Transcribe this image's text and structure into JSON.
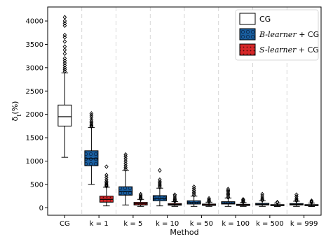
{
  "chart_data": {
    "type": "box",
    "title": "",
    "xlabel": "Method",
    "ylabel_main": "δ",
    "ylabel_sub": "t",
    "ylabel_unit": "(%)",
    "ylim": [
      -160,
      4300
    ],
    "yticks": [
      0,
      500,
      1000,
      1500,
      2000,
      2500,
      3000,
      3500,
      4000
    ],
    "grid": {
      "x": true,
      "y": false,
      "style": "dashed"
    },
    "legend_position": "top-right",
    "groups": [
      {
        "label": "CG",
        "boxes": [
          {
            "series": "CG",
            "q1": 1750,
            "median": 1950,
            "q3": 2200,
            "whisker_low": 1080,
            "whisker_high": 2890,
            "outliers": [
              2920,
              2960,
              3000,
              3050,
              3100,
              3150,
              3200,
              3300,
              3380,
              3450,
              3560,
              3650,
              3700,
              3900,
              3950,
              4000,
              4080
            ]
          }
        ]
      },
      {
        "label": "k = 1",
        "boxes": [
          {
            "series": "B-learner + CG",
            "q1": 900,
            "median": 1050,
            "q3": 1220,
            "whisker_low": 500,
            "whisker_high": 1720,
            "outliers": [
              1740,
              1760,
              1790,
              1820,
              1850,
              1890,
              1940,
              1980,
              2020
            ]
          },
          {
            "series": "S-learner + CG",
            "q1": 120,
            "median": 180,
            "q3": 250,
            "whisker_low": 40,
            "whisker_high": 440,
            "outliers": [
              460,
              480,
              500,
              530,
              560,
              600,
              650,
              700,
              880
            ]
          }
        ]
      },
      {
        "label": "k = 5",
        "boxes": [
          {
            "series": "B-learner + CG",
            "q1": 270,
            "median": 350,
            "q3": 450,
            "whisker_low": 60,
            "whisker_high": 800,
            "outliers": [
              820,
              860,
              900,
              950,
              1000,
              1050,
              1100,
              1140
            ]
          },
          {
            "series": "S-learner + CG",
            "q1": 60,
            "median": 85,
            "q3": 115,
            "whisker_low": 30,
            "whisker_high": 180,
            "outliers": [
              190,
              210,
              230,
              260,
              290
            ]
          }
        ]
      },
      {
        "label": "k = 10",
        "boxes": [
          {
            "series": "B-learner + CG",
            "q1": 150,
            "median": 200,
            "q3": 260,
            "whisker_low": 40,
            "whisker_high": 420,
            "outliers": [
              440,
              470,
              500,
              530,
              560,
              600,
              800
            ]
          },
          {
            "series": "S-learner + CG",
            "q1": 55,
            "median": 70,
            "q3": 90,
            "whisker_low": 30,
            "whisker_high": 130,
            "outliers": [
              140,
              160,
              180,
              210,
              250,
              280
            ]
          }
        ]
      },
      {
        "label": "k = 50",
        "boxes": [
          {
            "series": "B-learner + CG",
            "q1": 80,
            "median": 110,
            "q3": 150,
            "whisker_low": 30,
            "whisker_high": 250,
            "outliers": [
              270,
              300,
              330,
              370,
              410,
              450
            ]
          },
          {
            "series": "S-learner + CG",
            "q1": 50,
            "median": 62,
            "q3": 80,
            "whisker_low": 30,
            "whisker_high": 120,
            "outliers": [
              130,
              150,
              170,
              200
            ]
          }
        ]
      },
      {
        "label": "k = 100",
        "boxes": [
          {
            "series": "B-learner + CG",
            "q1": 80,
            "median": 100,
            "q3": 130,
            "whisker_low": 30,
            "whisker_high": 210,
            "outliers": [
              220,
              250,
              280,
              310,
              340,
              370,
              400
            ]
          },
          {
            "series": "S-learner + CG",
            "q1": 48,
            "median": 60,
            "q3": 75,
            "whisker_low": 30,
            "whisker_high": 110,
            "outliers": [
              120,
              140,
              160,
              180
            ]
          }
        ]
      },
      {
        "label": "k = 500",
        "boxes": [
          {
            "series": "B-learner + CG",
            "q1": 60,
            "median": 75,
            "q3": 95,
            "whisker_low": 30,
            "whisker_high": 150,
            "outliers": [
              160,
              180,
              210,
              250,
              290
            ]
          },
          {
            "series": "S-learner + CG",
            "q1": 45,
            "median": 55,
            "q3": 68,
            "whisker_low": 28,
            "whisker_high": 100,
            "outliers": [
              110,
              120
            ]
          }
        ]
      },
      {
        "label": "k = 999",
        "boxes": [
          {
            "series": "B-learner + CG",
            "q1": 60,
            "median": 72,
            "q3": 90,
            "whisker_low": 30,
            "whisker_high": 140,
            "outliers": [
              150,
              170,
              200,
              240,
              280
            ]
          },
          {
            "series": "S-learner + CG",
            "q1": 45,
            "median": 55,
            "q3": 68,
            "whisker_low": 28,
            "whisker_high": 100,
            "outliers": [
              110,
              130,
              150
            ]
          }
        ]
      }
    ],
    "legend": [
      {
        "series": "CG",
        "text": "CG",
        "italic": "",
        "fill": "#ffffff",
        "pattern": "none"
      },
      {
        "series": "B-learner + CG",
        "text": " + CG",
        "italic": "B-learner",
        "fill": "#1a5fa0",
        "pattern": "circles"
      },
      {
        "series": "S-learner + CG",
        "text": " + CG",
        "italic": "S-learner",
        "fill": "#d62728",
        "pattern": "dots"
      }
    ]
  }
}
